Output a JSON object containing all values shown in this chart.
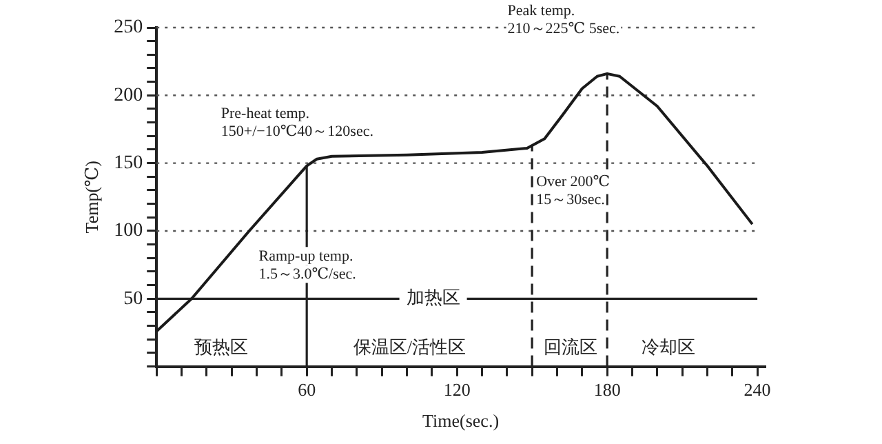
{
  "chart_data": {
    "type": "line",
    "xlabel": "Time(sec.)",
    "ylabel": "Temp(℃)",
    "x": [
      0,
      14,
      37,
      60,
      64,
      70,
      100,
      130,
      148,
      155,
      162,
      170,
      176,
      180,
      185,
      200,
      220,
      238
    ],
    "series": [
      {
        "color": "#1a1a1a",
        "values": [
          26,
          50,
          100,
          148,
          153,
          155,
          156,
          158,
          161,
          168,
          185,
          205,
          214,
          216,
          214,
          192,
          148,
          105
        ]
      }
    ],
    "xlim": [
      0,
      243
    ],
    "ylim": [
      0,
      250
    ],
    "xticks": [
      {
        "value": 0,
        "label": null
      },
      {
        "value": 10,
        "label": null
      },
      {
        "value": 20,
        "label": null
      },
      {
        "value": 30,
        "label": null
      },
      {
        "value": 40,
        "label": null
      },
      {
        "value": 50,
        "label": null
      },
      60,
      {
        "value": 70,
        "label": null
      },
      {
        "value": 80,
        "label": null
      },
      {
        "value": 90,
        "label": null
      },
      {
        "value": 100,
        "label": null
      },
      {
        "value": 110,
        "label": null
      },
      120,
      {
        "value": 130,
        "label": null
      },
      {
        "value": 140,
        "label": null
      },
      {
        "value": 150,
        "label": null
      },
      {
        "value": 160,
        "label": null
      },
      {
        "value": 170,
        "label": null
      },
      180,
      {
        "value": 190,
        "label": null
      },
      {
        "value": 200,
        "label": null
      },
      {
        "value": 210,
        "label": null
      },
      {
        "value": 220,
        "label": null
      },
      {
        "value": 230,
        "label": null
      },
      240
    ],
    "yticks": [
      {
        "value": 0,
        "label": null
      },
      {
        "value": 10,
        "label": null
      },
      {
        "value": 20,
        "label": null
      },
      {
        "value": 30,
        "label": null
      },
      {
        "value": 40,
        "label": null
      },
      50,
      {
        "value": 60,
        "label": null
      },
      {
        "value": 70,
        "label": null
      },
      {
        "value": 80,
        "label": null
      },
      {
        "value": 90,
        "label": null
      },
      100,
      {
        "value": 110,
        "label": null
      },
      {
        "value": 120,
        "label": null
      },
      {
        "value": 130,
        "label": null
      },
      {
        "value": 140,
        "label": null
      },
      150,
      {
        "value": 160,
        "label": null
      },
      {
        "value": 170,
        "label": null
      },
      {
        "value": 180,
        "label": null
      },
      {
        "value": 190,
        "label": null
      },
      200,
      {
        "value": 210,
        "label": null
      },
      {
        "value": 220,
        "label": null
      },
      {
        "value": 230,
        "label": null
      },
      {
        "value": 240,
        "label": null
      },
      250
    ],
    "grid": "y",
    "legend": false,
    "marker": "none",
    "line_style": "solid",
    "ref_lines": [
      {
        "axis": "y",
        "value": 50,
        "label": "加热区",
        "line_style": "solid"
      },
      {
        "axis": "x",
        "value": 60,
        "line_style": "solid"
      },
      {
        "axis": "x",
        "value": 150,
        "line_style": "dashed"
      },
      {
        "axis": "x",
        "value": 180,
        "line_style": "dashed"
      }
    ],
    "annotations": [
      "Pre-heat temp.\n150+/−10℃40～120sec.",
      "Ramp-up temp.\n1.5～3.0℃/sec.",
      {
        "text": "Over 200℃\n15～30sec.",
        "x": 150,
        "y": 120
      },
      "Peak temp.\n210～225℃ 5sec.",
      "预热区",
      "保温区/活性区",
      "回流区",
      "冷却区"
    ]
  }
}
